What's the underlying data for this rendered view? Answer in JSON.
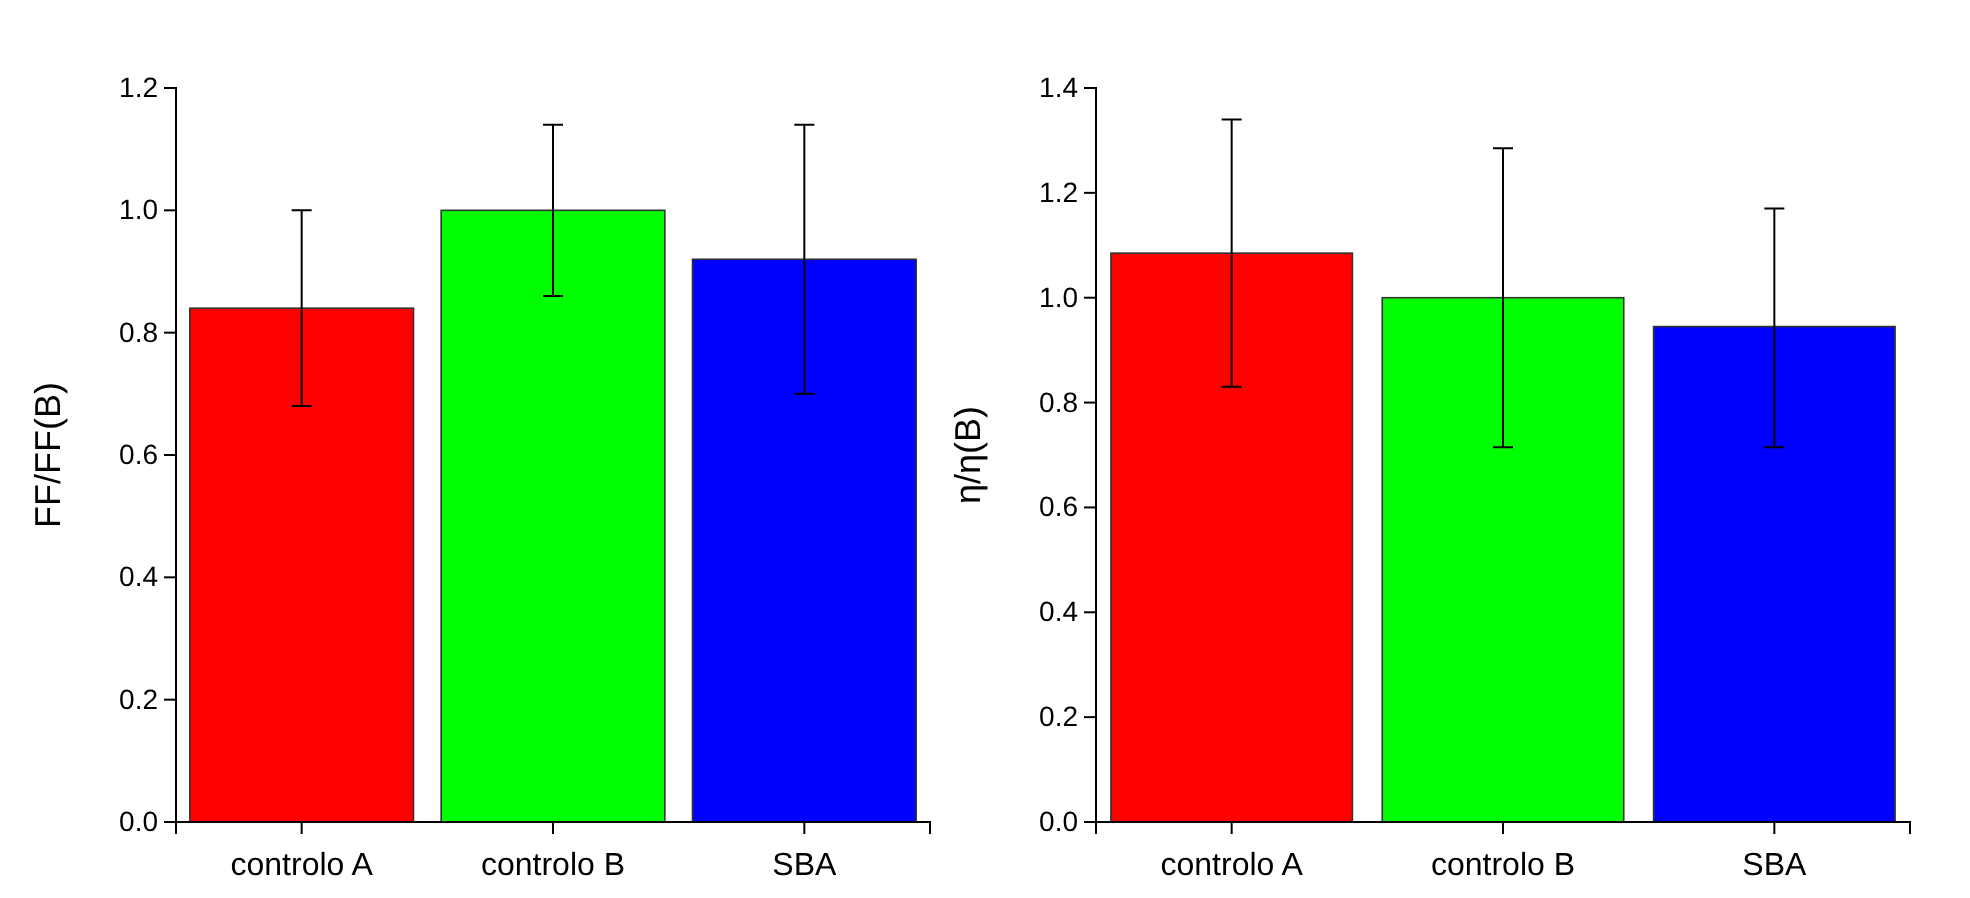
{
  "chart_data": [
    {
      "type": "bar",
      "ylabel": "FF/FF(B)",
      "categories": [
        "controlo A",
        "controlo B",
        "SBA"
      ],
      "values": [
        0.84,
        1.0,
        0.92
      ],
      "colors": [
        "#ff0000",
        "#00ff00",
        "#0000ff"
      ],
      "errors": [
        [
          0.68,
          1.0
        ],
        [
          0.86,
          1.14
        ],
        [
          0.7,
          1.14
        ]
      ],
      "ylim": [
        0,
        1.2
      ],
      "yticks": [
        {
          "value": 0,
          "label": "0.0"
        },
        {
          "value": 0.2,
          "label": "0.2"
        },
        {
          "value": 0.4,
          "label": "0.4"
        },
        {
          "value": 0.6,
          "label": "0.6"
        },
        {
          "value": 0.8,
          "label": "0.8"
        },
        {
          "value": 1,
          "label": "1.0"
        },
        {
          "value": 1.2,
          "label": "1.2"
        }
      ]
    },
    {
      "type": "bar",
      "ylabel": "η/η(B)",
      "categories": [
        "controlo A",
        "controlo B",
        "SBA"
      ],
      "values": [
        1.085,
        1.0,
        0.945
      ],
      "colors": [
        "#ff0000",
        "#00ff00",
        "#0000ff"
      ],
      "errors": [
        [
          0.83,
          1.34
        ],
        [
          0.715,
          1.285
        ],
        [
          0.715,
          1.17
        ]
      ],
      "ylim": [
        0,
        1.4
      ],
      "yticks": [
        {
          "value": 0,
          "label": "0.0"
        },
        {
          "value": 0.2,
          "label": "0.2"
        },
        {
          "value": 0.4,
          "label": "0.4"
        },
        {
          "value": 0.6,
          "label": "0.6"
        },
        {
          "value": 0.8,
          "label": "0.8"
        },
        {
          "value": 1,
          "label": "1.0"
        },
        {
          "value": 1.2,
          "label": "1.2"
        },
        {
          "value": 1.4,
          "label": "1.4"
        }
      ]
    }
  ]
}
